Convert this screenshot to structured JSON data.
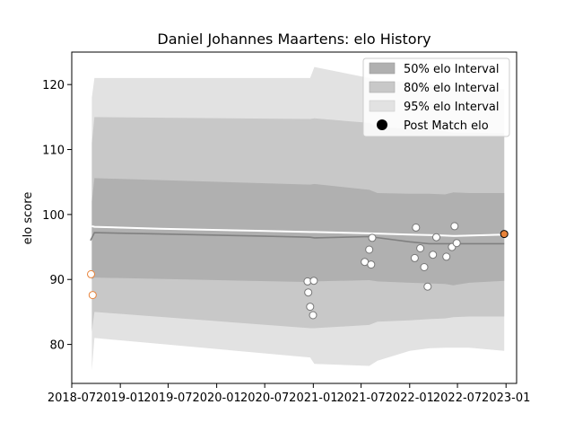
{
  "chart_data": {
    "type": "line",
    "title": "Daniel Johannes Maartens: elo History",
    "xlabel": "",
    "ylabel": "elo score",
    "xlim": [
      "2018-07-01",
      "2023-02-10"
    ],
    "ylim": [
      74,
      125
    ],
    "x_ticks": [
      "2018-07-01",
      "2019-01-01",
      "2019-07-01",
      "2020-01-01",
      "2020-07-01",
      "2021-01-01",
      "2021-07-01",
      "2022-01-01",
      "2022-07-01",
      "2023-01-01"
    ],
    "x_tick_labels": [
      "2018-07",
      "2019-01",
      "2019-07",
      "2020-01",
      "2020-07",
      "2021-01",
      "2021-07",
      "2022-01",
      "2022-07",
      "2023-01"
    ],
    "y_ticks": [
      80,
      90,
      100,
      110,
      120
    ],
    "grid": false,
    "legend_position": "top-right",
    "legend": [
      {
        "label": "50% elo Interval",
        "color": "#b0b0b0"
      },
      {
        "label": "80% elo Interval",
        "color": "#c8c8c8"
      },
      {
        "label": "95% elo Interval",
        "color": "#e2e2e2"
      },
      {
        "label": "Post Match elo",
        "color": "#000000"
      }
    ],
    "bands": {
      "x": [
        "2018-09-15",
        "2018-09-25",
        "2020-12-20",
        "2021-01-05",
        "2021-08-01",
        "2021-09-01",
        "2022-01-01",
        "2022-03-15",
        "2022-05-15",
        "2022-06-15",
        "2022-08-15",
        "2022-12-25"
      ],
      "band95_upper": [
        118,
        121,
        121,
        122.7,
        121,
        120.5,
        120.5,
        120,
        119.7,
        119.3,
        119.3,
        119.3
      ],
      "band95_lower": [
        76,
        81,
        78,
        77,
        76.7,
        77.5,
        79,
        79.4,
        79.5,
        79.5,
        79.5,
        79
      ],
      "band80_upper": [
        111,
        115,
        114.7,
        114.8,
        114.1,
        113.5,
        113.2,
        113,
        112.8,
        112.6,
        112.6,
        112.5
      ],
      "band80_lower": [
        82,
        85,
        82.5,
        82.5,
        83,
        83.5,
        83.7,
        83.9,
        84,
        84.2,
        84.3,
        84.3
      ],
      "band50_upper": [
        102,
        105.6,
        104.6,
        104.7,
        103.8,
        103.3,
        103.2,
        103.2,
        103.1,
        103.4,
        103.3,
        103.3
      ],
      "band50_lower": [
        90,
        90.3,
        89.6,
        89.7,
        89.9,
        89.7,
        89.5,
        89.4,
        89.3,
        89.1,
        89.5,
        89.8
      ]
    },
    "series": [
      {
        "name": "",
        "style": "line",
        "color": "#ffffff",
        "x": [
          "2018-09-15",
          "2018-09-25",
          "2019-06-01",
          "2020-06-01",
          "2020-12-20",
          "2021-01-05",
          "2021-08-01",
          "2022-01-01",
          "2022-04-15",
          "2022-06-15",
          "2022-12-25"
        ],
        "y": [
          98.2,
          98.1,
          97.8,
          97.5,
          97.3,
          97.3,
          97.1,
          96.9,
          96.8,
          96.7,
          96.9
        ]
      },
      {
        "name": "",
        "style": "line",
        "color": "#808080",
        "x": [
          "2018-09-10",
          "2018-09-25",
          "2019-06-01",
          "2020-06-01",
          "2020-12-20",
          "2021-01-05",
          "2021-08-01",
          "2022-01-01",
          "2022-03-15",
          "2022-06-15",
          "2022-12-25"
        ],
        "y": [
          96,
          97.2,
          97,
          96.7,
          96.5,
          96.4,
          96.6,
          95.8,
          95.5,
          95.5,
          95.5
        ]
      },
      {
        "name": "Post Match elo",
        "style": "scatter",
        "points": [
          {
            "x": "2018-09-12",
            "y": 90.8,
            "fill": "#ffffff",
            "edge": "#e8833a"
          },
          {
            "x": "2018-09-18",
            "y": 87.6,
            "fill": "#ffffff",
            "edge": "#e8833a"
          },
          {
            "x": "2020-12-10",
            "y": 89.7,
            "fill": "#ffffff",
            "edge": "#777777"
          },
          {
            "x": "2020-12-13",
            "y": 88.0,
            "fill": "#ffffff",
            "edge": "#777777"
          },
          {
            "x": "2020-12-20",
            "y": 85.8,
            "fill": "#ffffff",
            "edge": "#777777"
          },
          {
            "x": "2020-12-31",
            "y": 84.5,
            "fill": "#ffffff",
            "edge": "#777777"
          },
          {
            "x": "2021-01-03",
            "y": 89.8,
            "fill": "#ffffff",
            "edge": "#777777"
          },
          {
            "x": "2021-07-15",
            "y": 92.7,
            "fill": "#ffffff",
            "edge": "#777777"
          },
          {
            "x": "2021-08-01",
            "y": 94.6,
            "fill": "#ffffff",
            "edge": "#777777"
          },
          {
            "x": "2021-08-08",
            "y": 92.3,
            "fill": "#ffffff",
            "edge": "#777777"
          },
          {
            "x": "2021-08-12",
            "y": 96.4,
            "fill": "#ffffff",
            "edge": "#777777"
          },
          {
            "x": "2022-01-20",
            "y": 93.3,
            "fill": "#ffffff",
            "edge": "#777777"
          },
          {
            "x": "2022-01-25",
            "y": 98.0,
            "fill": "#ffffff",
            "edge": "#777777"
          },
          {
            "x": "2022-02-10",
            "y": 94.8,
            "fill": "#ffffff",
            "edge": "#777777"
          },
          {
            "x": "2022-02-25",
            "y": 91.9,
            "fill": "#ffffff",
            "edge": "#777777"
          },
          {
            "x": "2022-03-10",
            "y": 88.9,
            "fill": "#ffffff",
            "edge": "#777777"
          },
          {
            "x": "2022-03-30",
            "y": 93.8,
            "fill": "#ffffff",
            "edge": "#777777"
          },
          {
            "x": "2022-04-12",
            "y": 96.5,
            "fill": "#ffffff",
            "edge": "#777777"
          },
          {
            "x": "2022-05-20",
            "y": 93.5,
            "fill": "#ffffff",
            "edge": "#777777"
          },
          {
            "x": "2022-06-10",
            "y": 95.0,
            "fill": "#ffffff",
            "edge": "#777777"
          },
          {
            "x": "2022-06-20",
            "y": 98.2,
            "fill": "#ffffff",
            "edge": "#777777"
          },
          {
            "x": "2022-06-28",
            "y": 95.6,
            "fill": "#ffffff",
            "edge": "#777777"
          },
          {
            "x": "2022-12-25",
            "y": 97.0,
            "fill": "#e8833a",
            "edge": "#000000"
          }
        ]
      }
    ]
  }
}
